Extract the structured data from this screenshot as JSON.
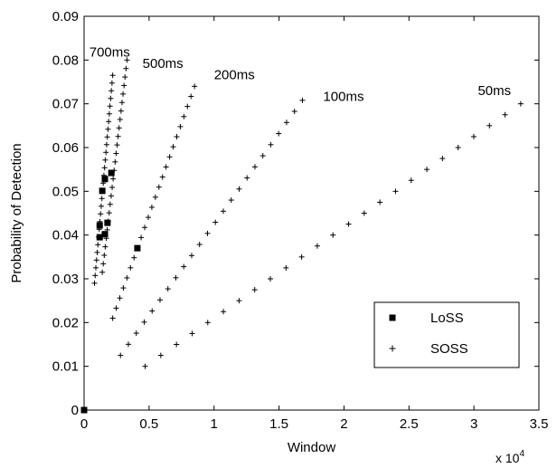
{
  "chart_data": {
    "type": "scatter",
    "title": "",
    "xlabel": "Window",
    "ylabel": "Probability of Detection",
    "x_multiplier_label": "x 10",
    "x_multiplier_exponent": "4",
    "xlim": [
      0,
      35000
    ],
    "ylim": [
      0,
      0.09
    ],
    "xticks": [
      0,
      5000,
      10000,
      15000,
      20000,
      25000,
      30000,
      35000
    ],
    "xtick_labels": [
      "0",
      "0.5",
      "1",
      "1.5",
      "2",
      "2.5",
      "3",
      "3.5"
    ],
    "yticks": [
      0,
      0.01,
      0.02,
      0.03,
      0.04,
      0.05,
      0.06,
      0.07,
      0.08,
      0.09
    ],
    "ytick_labels": [
      "0",
      "0.01",
      "0.02",
      "0.03",
      "0.04",
      "0.05",
      "0.06",
      "0.07",
      "0.08",
      "0.09"
    ],
    "grid": false,
    "legend_position": "bottom-right",
    "series": [
      {
        "name": "LoSS",
        "marker": "filled-square",
        "color": "#000000",
        "points": [
          {
            "x": 0,
            "y": 0
          },
          {
            "x": 1200,
            "y": 0.0395
          },
          {
            "x": 1600,
            "y": 0.0402
          },
          {
            "x": 1200,
            "y": 0.0422
          },
          {
            "x": 1800,
            "y": 0.0428
          },
          {
            "x": 1400,
            "y": 0.0501
          },
          {
            "x": 1600,
            "y": 0.0528
          },
          {
            "x": 2100,
            "y": 0.0542
          },
          {
            "x": 4100,
            "y": 0.037
          }
        ]
      },
      {
        "name": "SOSS",
        "marker": "plus",
        "color": "#000000",
        "lines": [
          {
            "label": "700ms",
            "x_start": 800,
            "x_end": 2200,
            "y_start": 0.029,
            "y_end": 0.0765,
            "count": 28
          },
          {
            "label": "700ms",
            "x_start": 1400,
            "x_end": 3300,
            "y_start": 0.0315,
            "y_end": 0.08,
            "count": 26
          },
          {
            "label": "500ms",
            "x_start": 2200,
            "x_end": 8500,
            "y_start": 0.021,
            "y_end": 0.074,
            "count": 24
          },
          {
            "label": "200ms",
            "x_start": 2800,
            "x_end": 16800,
            "y_start": 0.0125,
            "y_end": 0.0708,
            "count": 24
          },
          {
            "label": "50ms",
            "x_start": 4700,
            "x_end": 33600,
            "y_start": 0.01,
            "y_end": 0.07,
            "count": 25
          }
        ]
      }
    ],
    "annotations": [
      {
        "text": "700ms",
        "x": 400,
        "y": 0.0808
      },
      {
        "text": "500ms",
        "x": 4500,
        "y": 0.0782
      },
      {
        "text": "200ms",
        "x": 10000,
        "y": 0.0756
      },
      {
        "text": "100ms",
        "x": 18400,
        "y": 0.0707
      },
      {
        "text": "50ms",
        "x": 30300,
        "y": 0.072
      }
    ]
  }
}
